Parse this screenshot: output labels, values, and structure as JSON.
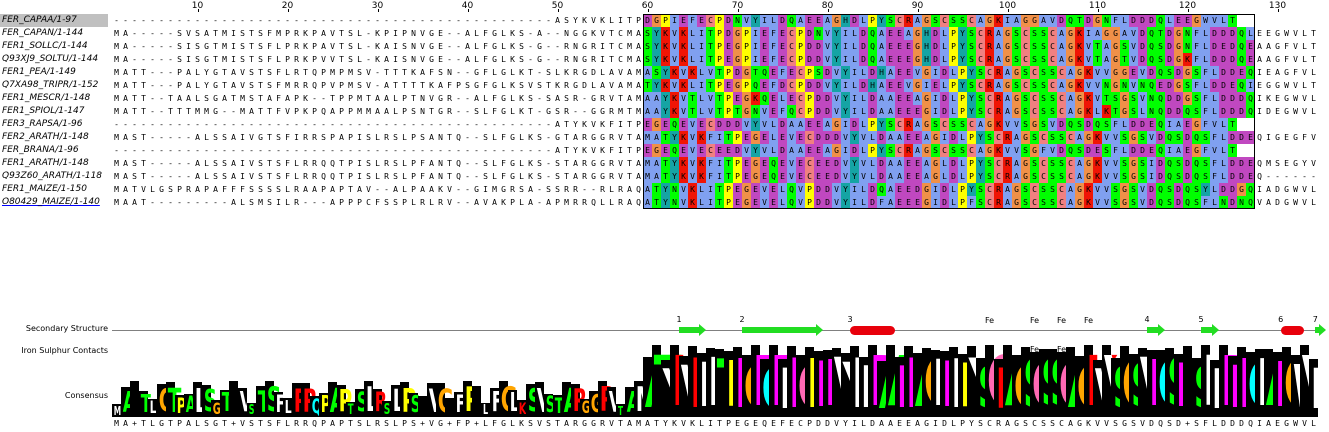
{
  "ruler": {
    "labels": [
      "10",
      "20",
      "30",
      "40",
      "50",
      "60",
      "70",
      "80",
      "90",
      "100",
      "110",
      "120",
      "130"
    ]
  },
  "sequences": [
    {
      "name": "FER_CAPAA/1-97",
      "seq": "-------------------------------------------------ASYKVKLITPDGPIEFECPDNVYILDQAEEAGHDLPYSCRAGSCSSCAGKIAGGAVDQTDGNFLDDDQLEEGWVLT",
      "selected": true
    },
    {
      "name": "FER_CAPAN/1-144",
      "seq": "MA-----SVSATMISTSFMPRKPAVTSL-KPIPNVGE--ALFGLKS-A--NGGKVTCMASYKVKLITPDGPIEFECPDNVYILDQAEEAGHDLPYSCRAGSCSSCAGKIAGGAVDQTDGNFLDDDQLEEGWVLT"
    },
    {
      "name": "FER1_SOLLC/1-144",
      "seq": "MA-----SISGTMISTSFLPRKPAVTSL-KAISNVGE--ALFGLKS-G--RNGRITCMASYKVKLITPEGPIEFECPDDVYILDQAEEEGHDLPYSCRAGSCSSCAGKVTAGSVDQSDGNFLDEDQEAAGFVLT"
    },
    {
      "name": "Q93XJ9_SOLTU/1-144",
      "seq": "MA-----SISGTMISTSFLPRKPVVTSL-KAISNVGE--ALFGLKS-G--RNGRITCMASYKVKLITPEGPIEFECPDDVYILDQAEEEGHDLPYSCRAGSCSSCAGKVTAGTVDQSDGKFLDDDQEAAGFVLT"
    },
    {
      "name": "FER1_PEA/1-149",
      "seq": "MATT---PALYGTAVSTSFLRTQPMPMSV-TTTKAFSN--GFLGLKT-SLKRGDLAVAMASYKVKLVTPDGTQEFECPSDVYILDHAEEVGIDLPYSCRAGSCSSCAGKVVGGEVDQSDGSFLDDEQIEAGFVLT"
    },
    {
      "name": "Q7XA98_TRIPR/1-152",
      "seq": "MATT---PALYGTAVSTSFMRRQPVPMSV-ATTTTKAFPSGFGLKSVSTKRGDLAVAMATYKVKLITPEGPQEFDCPDDVYILDHAEEVGIELPYSCRAGSCSSCAGKVVNGNVNQEDGSFLDDEQIEGGWVLT"
    },
    {
      "name": "FER1_MESCR/1-148",
      "seq": "MATT--TAALSGATMSTAFAPK--TPPMTAALPTNVGR--ALFGLKS-SASR-GRVTAMAAYKVTLVTPEGKQELECPDDVYILDAAEEAGIDLPYSCRAGSCSSCAGKVTSGSVNQDDGSFLDDDQIKEGWVLT"
    },
    {
      "name": "FER1_SPIOL/1-147",
      "seq": "MATT--TTTMMG--MATTFVPKPQAPPMMAALPSNTGR--SLFGLKT-GSR--GGRMTMAAYKVTLVTPTGNVEFQCPDDVYILDAAEEEGIDLPYSCRAGSCSSCAGKLKTGSLNQDDQSFLDDDQIDEGWVLT"
    },
    {
      "name": "FER3_RAPSA/1-96",
      "seq": "-------------------------------------------------ATYKVKFITPEGEQEVECDDDVYVLDAAEEAGIDLPYSCRAGSCSSCAGKVVSGSVDQSDQSFLDDEQIAEGFVLT"
    },
    {
      "name": "FER2_ARATH/1-148",
      "seq": "MAST-----ALSSAIVGTSFIRRSPAPISLRSLPSANTQ--SLFGLKS-GTARGGRVTAMATYKVKFITPEGELEVECDDDVYVLDAAEEAGIDLPYSCRAGSCSSCAGKVVSGSVDQSDQSFLDDEQIGEGFVLT"
    },
    {
      "name": "FER_BRANA/1-96",
      "seq": "-------------------------------------------------ATYKVKFITPEGEQEVECEEDVYVLDAAEEAGIDLPYSCRAGSCSSCAGKVVSGFVDQSDESFLDDEQIAEGFVLT"
    },
    {
      "name": "FER1_ARATH/1-148",
      "seq": "MAST-----ALSSAIVSTSFLRRQQTPISLRSLPFANTQ--SLFGLKS-STARGGRVTAMATYKVKFITPEGEQEVECEEDVYVLDAAEEAGLDLPYSCRAGSCSSCAGKVVSGSIDQSDQSFLDDEQMSEGYVLT"
    },
    {
      "name": "Q93Z60_ARATH/1-118",
      "seq": "MAST-----ALSSAIVSTSFLRRQQTPISLRSLPFANTQ--SLFGLKS-STARGGRVTAMATYKVKFITPEGEQEVECEEDVYVLDAAEEAGLDLPYSCRAGSCSSCAGKVVSGSIDQSDQSFLDDEQ-------"
    },
    {
      "name": "FER1_MAIZE/1-150",
      "seq": "MATVLGSPRAPAFFFSSSSLRAAPAPTAV--ALPAAKV--GIMGRSA-SSRR--RLRAQATYNVKLITPEGEVELQVPDDVYILDQAEEDGIDLPYSCRAGSCSSCAGKVVSGSVDQSDQSYLDDGQIADGWVLT"
    },
    {
      "name": "O80429_MAIZE/1-140",
      "seq": "MAAT---------ALSMSILR---APPPCFSSPLRLRV--AVAKPLA-APMRRQLLRAQATYNVKLITPEGEVELQVPDDVYILDFAEEEGIDLPFSCRAGSCSSCAGKVVSGSVDQSDQSFLNDNQVADGWVLT",
      "cursor": true
    }
  ],
  "annotations": {
    "secondary_structure_label": "Secondary Structure",
    "iron_sulphur_label": "Iron Sulphur Contacts",
    "consensus_label": "Consensus",
    "ss_numbers": [
      "1",
      "2",
      "3",
      "4",
      "5",
      "6",
      "7"
    ],
    "fe_label": "Fe"
  },
  "consensus": {
    "sequence": "MA+TLGTPALSGT+VSTSFLRRQPAPTSLRSLPS+VG+FP+LFGLKSVSTARGGRVTAMATYKVKLITPEGEQEFECPDDVYILDAAEEAGIDLPYSCRAGSCSSCAGKVVSGSVDQSD+SFLDDDQIAEGWVLT"
  },
  "colors": {
    "A": "#80a0f0",
    "R": "#f01505",
    "N": "#00ff00",
    "D": "#c048c0",
    "C": "#f08080",
    "Q": "#00ff00",
    "E": "#c048c0",
    "G": "#f09048",
    "H": "#15a4a4",
    "I": "#80a0f0",
    "L": "#80a0f0",
    "K": "#f01505",
    "M": "#80a0f0",
    "F": "#80a0f0",
    "P": "#ffff00",
    "S": "#00ff00",
    "T": "#00ff00",
    "W": "#80a0f0",
    "Y": "#15a4a4",
    "V": "#80a0f0"
  },
  "logo_colors": {
    "A": "#00ff00",
    "T": "#00ff00",
    "S": "#00ff00",
    "G": "#ffa500",
    "C": "#ff69b4",
    "P": "#ffff00",
    "K": "#ff0000",
    "R": "#ff0000",
    "D": "#ff00ff",
    "E": "#ff00ff",
    "N": "#00ffff",
    "Q": "#00ffff",
    "V": "#ffffff",
    "I": "#ffffff",
    "L": "#ffffff",
    "M": "#ffffff",
    "F": "#ffffff",
    "Y": "#ffffff",
    "W": "#ffffff",
    "H": "#ffffff"
  }
}
